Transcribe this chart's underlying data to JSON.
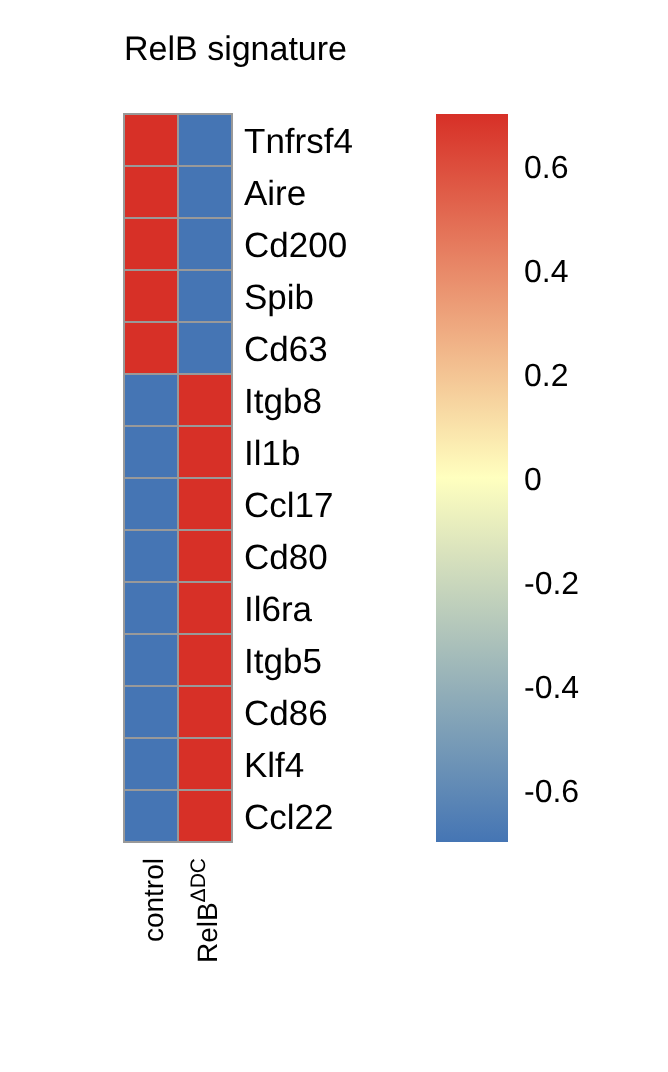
{
  "chart_data": {
    "type": "heatmap",
    "title": "RelB signature",
    "categories": [
      "control",
      "RelB$^{ΔDC}$"
    ],
    "y_categories": [
      "Tnfrsf4",
      "Aire",
      "Cd200",
      "Spib",
      "Cd63",
      "Itgb8",
      "Il1b",
      "Ccl17",
      "Cd80",
      "Il6ra",
      "Itgb5",
      "Cd86",
      "Klf4",
      "Ccl22"
    ],
    "cells": [
      [
        0.7,
        -0.7
      ],
      [
        0.7,
        -0.7
      ],
      [
        0.7,
        -0.7
      ],
      [
        0.7,
        -0.7
      ],
      [
        0.7,
        -0.7
      ],
      [
        -0.7,
        0.7
      ],
      [
        -0.7,
        0.7
      ],
      [
        -0.7,
        0.7
      ],
      [
        -0.7,
        0.7
      ],
      [
        -0.7,
        0.7
      ],
      [
        -0.7,
        0.7
      ],
      [
        -0.7,
        0.7
      ],
      [
        -0.7,
        0.7
      ],
      [
        -0.7,
        0.7
      ]
    ],
    "clim": [
      -0.7,
      0.7
    ],
    "cticks": [
      0.6,
      0.4,
      0.2,
      0,
      -0.2,
      -0.4,
      -0.6
    ]
  }
}
